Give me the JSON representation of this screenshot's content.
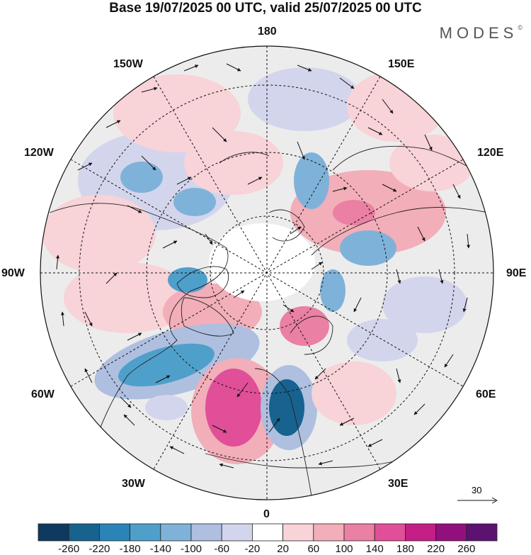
{
  "title": "Base 19/07/2025 00 UTC, valid 25/07/2025 00 UTC",
  "brand": "MODES",
  "brand_mark": "©",
  "longitude_labels": {
    "top": "180",
    "top_left": "150W",
    "top_right": "150E",
    "upper_left": "120W",
    "upper_right": "120E",
    "left": "90W",
    "right": "90E",
    "lower_left": "60W",
    "lower_right": "60E",
    "bottom_left": "30W",
    "bottom_right": "30E",
    "bottom": "0"
  },
  "reference_vector": "30",
  "colorbar": {
    "labels": [
      "-260",
      "-220",
      "-180",
      "-140",
      "-100",
      "-60",
      "-20",
      "20",
      "60",
      "100",
      "140",
      "180",
      "220",
      "260"
    ],
    "colors": [
      "#0e3a5f",
      "#17628f",
      "#2a84b8",
      "#4f9fcb",
      "#7fb2d9",
      "#aebfe0",
      "#d3d5ec",
      "#ffffff",
      "#f8d3d8",
      "#f2aeb9",
      "#ea80a3",
      "#e04f98",
      "#c41f86",
      "#92107d",
      "#5c1270"
    ]
  },
  "map_colors": {
    "land_background": "#e9e9e9",
    "ocean": "#ffffff",
    "grid": "#111111"
  }
}
